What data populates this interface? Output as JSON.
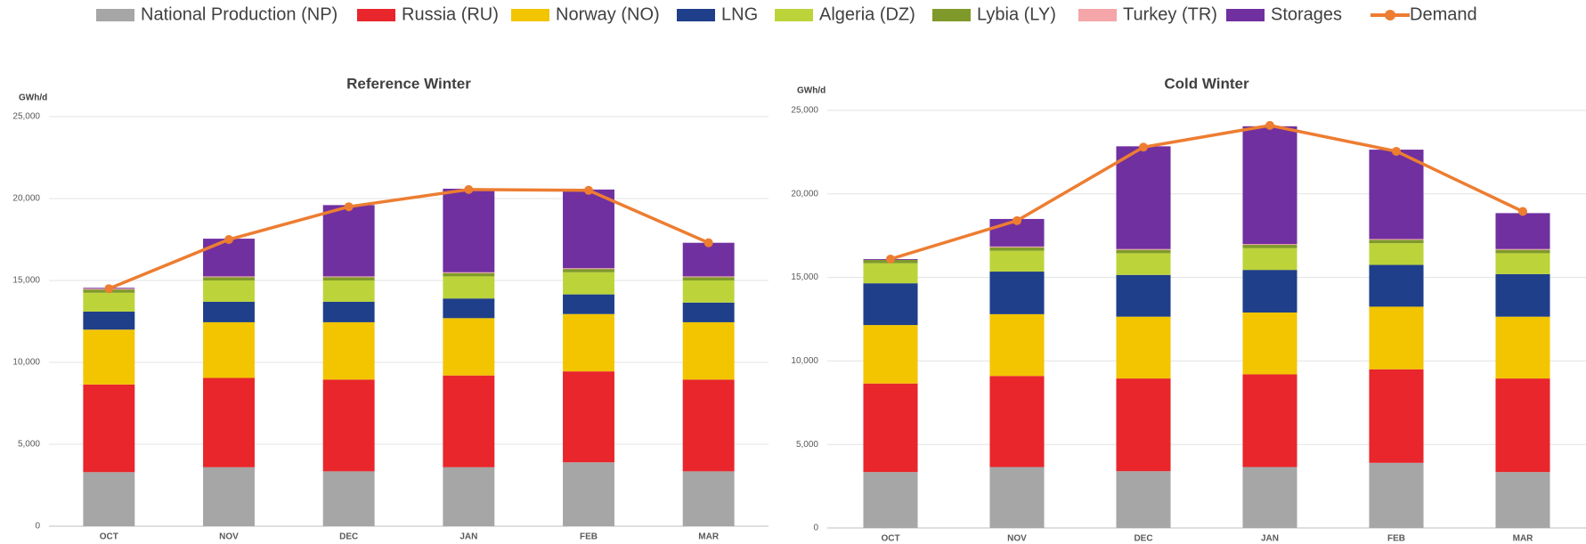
{
  "chart_data": [
    {
      "type": "bar",
      "stacked": true,
      "title": "Reference Winter",
      "y_label": "GWh/d",
      "categories": [
        "OCT",
        "NOV",
        "DEC",
        "JAN",
        "FEB",
        "MAR"
      ],
      "ylim": [
        0,
        25000
      ],
      "yticks": [
        0,
        {
          "value": 5000,
          "label": "5,000"
        },
        {
          "value": 10000,
          "label": "10,000"
        },
        {
          "value": 15000,
          "label": "15,000"
        },
        {
          "value": 20000,
          "label": "20,000"
        },
        {
          "value": 25000,
          "label": "25,000"
        }
      ],
      "grid": true,
      "series": [
        {
          "name": "National Production (NP)",
          "color": "#a6a6a6",
          "values": [
            3300,
            3600,
            3350,
            3600,
            3900,
            3350
          ]
        },
        {
          "name": "Russia (RU)",
          "color": "#e8262b",
          "values": [
            5350,
            5450,
            5600,
            5600,
            5550,
            5600
          ]
        },
        {
          "name": "Norway (NO)",
          "color": "#f2c500",
          "values": [
            3350,
            3400,
            3500,
            3500,
            3500,
            3500
          ]
        },
        {
          "name": "LNG",
          "color": "#1f3f8a",
          "values": [
            1100,
            1250,
            1250,
            1200,
            1200,
            1200
          ]
        },
        {
          "name": "Algeria (DZ)",
          "color": "#bcd43a",
          "values": [
            1150,
            1300,
            1300,
            1350,
            1350,
            1350
          ]
        },
        {
          "name": "Lybia (LY)",
          "color": "#7f9a2a",
          "values": [
            200,
            200,
            200,
            200,
            200,
            200
          ]
        },
        {
          "name": "Turkey (TR)",
          "color": "#f4a6a8",
          "values": [
            50,
            50,
            50,
            50,
            50,
            50
          ]
        },
        {
          "name": "Storages",
          "color": "#7030a0",
          "values": [
            50,
            2300,
            4350,
            5100,
            4800,
            2050
          ]
        },
        {
          "name": "Demand",
          "color": "#ed7d31",
          "type": "line",
          "values": [
            14500,
            17500,
            19500,
            20550,
            20500,
            17300
          ]
        }
      ]
    },
    {
      "type": "bar",
      "stacked": true,
      "title": "Cold Winter",
      "y_label": "GWh/d",
      "categories": [
        "OCT",
        "NOV",
        "DEC",
        "JAN",
        "FEB",
        "MAR"
      ],
      "ylim": [
        0,
        25000
      ],
      "yticks": [
        0,
        {
          "value": 5000,
          "label": "5,000"
        },
        {
          "value": 10000,
          "label": "10,000"
        },
        {
          "value": 15000,
          "label": "15,000"
        },
        {
          "value": 20000,
          "label": "20,000"
        },
        {
          "value": 25000,
          "label": "25,000"
        }
      ],
      "grid": true,
      "series": [
        {
          "name": "National Production (NP)",
          "color": "#a6a6a6",
          "values": [
            3350,
            3650,
            3400,
            3650,
            3900,
            3350
          ]
        },
        {
          "name": "Russia (RU)",
          "color": "#e8262b",
          "values": [
            5300,
            5450,
            5550,
            5550,
            5600,
            5600
          ]
        },
        {
          "name": "Norway (NO)",
          "color": "#f2c500",
          "values": [
            3500,
            3700,
            3700,
            3700,
            3750,
            3700
          ]
        },
        {
          "name": "LNG",
          "color": "#1f3f8a",
          "values": [
            2500,
            2550,
            2500,
            2550,
            2500,
            2550
          ]
        },
        {
          "name": "Algeria (DZ)",
          "color": "#bcd43a",
          "values": [
            1200,
            1250,
            1300,
            1300,
            1300,
            1250
          ]
        },
        {
          "name": "Lybia (LY)",
          "color": "#7f9a2a",
          "values": [
            200,
            200,
            200,
            200,
            200,
            200
          ]
        },
        {
          "name": "Turkey (TR)",
          "color": "#f4a6a8",
          "values": [
            0,
            50,
            50,
            50,
            50,
            50
          ]
        },
        {
          "name": "Storages",
          "color": "#7030a0",
          "values": [
            50,
            1650,
            6150,
            7050,
            5350,
            2150
          ]
        },
        {
          "name": "Demand",
          "color": "#ed7d31",
          "type": "line",
          "values": [
            16100,
            18400,
            22800,
            24100,
            22550,
            18950
          ]
        }
      ]
    }
  ]
}
